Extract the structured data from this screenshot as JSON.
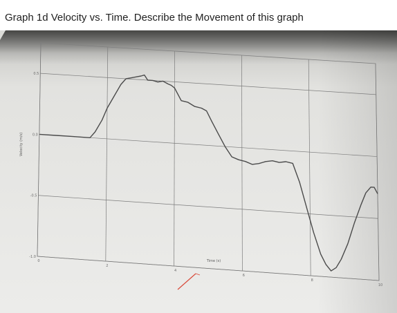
{
  "header": {
    "title": "Graph 1d Velocity vs. Time. Describe the Movement of this graph"
  },
  "colors": {
    "paper": "#e9e9e6",
    "grid": "#7b7b7b",
    "curve": "#4a4a4a",
    "pen_mark": "#d94a3a"
  },
  "chart_data": {
    "type": "line",
    "title": "",
    "xlabel": "Time (s)",
    "ylabel": "Velocity (m/s)",
    "xlim": [
      0,
      10
    ],
    "ylim": [
      -1.0,
      0.75
    ],
    "grid": true,
    "x_ticks": [
      "0",
      "2",
      "4",
      "6",
      "8",
      "10"
    ],
    "y_ticks": [
      "0.5",
      "0.0",
      "-0.5",
      "-1.0"
    ],
    "series": [
      {
        "x": [
          0,
          0.5,
          1.0,
          1.5,
          1.65,
          1.85,
          2.0,
          2.2,
          2.4,
          2.55,
          2.7,
          2.85,
          3.0,
          3.1,
          3.2,
          3.35,
          3.5,
          3.65,
          3.8,
          3.9,
          4.0,
          4.2,
          4.4,
          4.6,
          4.8,
          4.95,
          5.1,
          5.3,
          5.5,
          5.7,
          5.9,
          6.1,
          6.3,
          6.5,
          6.7,
          6.9,
          7.1,
          7.3,
          7.5,
          7.7,
          7.9,
          8.1,
          8.3,
          8.45,
          8.6,
          8.75,
          8.9,
          9.1,
          9.3,
          9.5,
          9.65,
          9.8,
          9.9,
          10.0
        ],
        "y": [
          0.0,
          0.0,
          0.0,
          0.0,
          0.05,
          0.15,
          0.25,
          0.35,
          0.45,
          0.5,
          0.51,
          0.52,
          0.53,
          0.54,
          0.5,
          0.5,
          0.49,
          0.5,
          0.48,
          0.47,
          0.45,
          0.35,
          0.34,
          0.31,
          0.3,
          0.28,
          0.2,
          0.1,
          0.0,
          -0.08,
          -0.1,
          -0.11,
          -0.13,
          -0.12,
          -0.1,
          -0.09,
          -0.1,
          -0.09,
          -0.1,
          -0.25,
          -0.45,
          -0.65,
          -0.82,
          -0.9,
          -0.95,
          -0.92,
          -0.85,
          -0.72,
          -0.55,
          -0.4,
          -0.3,
          -0.25,
          -0.25,
          -0.3
        ]
      }
    ]
  }
}
